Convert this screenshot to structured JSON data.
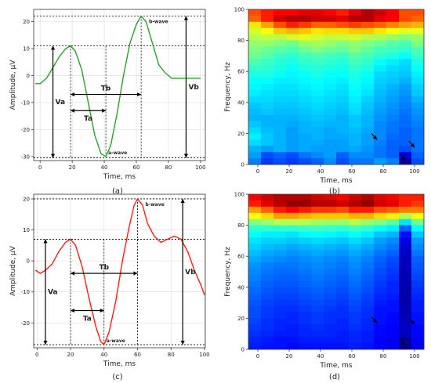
{
  "captions": {
    "a": "(a)",
    "b": "(b)",
    "c": "(c)",
    "d": "(d)"
  },
  "colors": {
    "green_curve": "#2ca02c",
    "red_curve": "#ff1a1a"
  },
  "chart_data": [
    {
      "id": "a",
      "type": "line",
      "xlabel": "Time, ms",
      "ylabel": "Amplitude, μV",
      "xlim": [
        -4,
        103
      ],
      "ylim": [
        -31.5,
        24.5
      ],
      "xticks": [
        0,
        20,
        40,
        60,
        80,
        100
      ],
      "yticks": [
        -30,
        -20,
        -10,
        0,
        10,
        20
      ],
      "grid": true,
      "series": [
        {
          "color": "#2ca02c",
          "x": [
            -3,
            0,
            4,
            8,
            12,
            16,
            19,
            22,
            26,
            30,
            34,
            38,
            41,
            44,
            48,
            52,
            56,
            60,
            63,
            66,
            70,
            74,
            78,
            82,
            86,
            90,
            94,
            98,
            100
          ],
          "y": [
            -3,
            -3,
            -1,
            3,
            7,
            10,
            11,
            9,
            2,
            -10,
            -22,
            -29,
            -30,
            -26,
            -14,
            0,
            12,
            19,
            22,
            20,
            12,
            4,
            1,
            -1,
            -1,
            -1,
            -1,
            -1,
            -1
          ]
        }
      ],
      "annotations": {
        "a_wave": "a-wave",
        "b_wave": "b-wave",
        "Va": "Va",
        "Vb": "Vb",
        "Ta": "Ta",
        "Tb": "Tb"
      },
      "markers": {
        "a_peak": [
          41,
          -30
        ],
        "b_peak": [
          63,
          22
        ],
        "onset": 19,
        "onset_level": 11,
        "baseline": -30.5,
        "va_x": 8,
        "vb_x": 91,
        "ta_y": -13,
        "tb_y": -7
      }
    },
    {
      "id": "b",
      "type": "heatmap",
      "xlabel": "Time, ms",
      "ylabel": "Frequency, Hz",
      "xlim": [
        -6,
        106
      ],
      "ylim": [
        0,
        100
      ],
      "xticks": [
        0,
        20,
        40,
        60,
        80,
        100
      ],
      "yticks": [
        0,
        20,
        40,
        60,
        80,
        100
      ],
      "columns": 14,
      "row_height_hz": 4,
      "levels": [
        [
          0.8,
          0.85,
          0.88,
          0.88,
          0.9,
          0.9,
          0.88,
          0.85,
          0.9,
          0.95,
          0.92,
          0.88,
          0.8,
          0.8
        ],
        [
          0.78,
          0.85,
          0.92,
          0.95,
          0.95,
          0.92,
          0.92,
          0.9,
          0.95,
          0.95,
          0.9,
          0.88,
          0.8,
          0.78
        ],
        [
          0.65,
          0.72,
          0.8,
          0.85,
          0.82,
          0.78,
          0.78,
          0.8,
          0.82,
          0.8,
          0.78,
          0.75,
          0.72,
          0.7
        ],
        [
          0.58,
          0.62,
          0.68,
          0.7,
          0.68,
          0.65,
          0.66,
          0.66,
          0.68,
          0.68,
          0.65,
          0.62,
          0.6,
          0.6
        ],
        [
          0.55,
          0.56,
          0.55,
          0.58,
          0.6,
          0.58,
          0.56,
          0.57,
          0.58,
          0.55,
          0.54,
          0.52,
          0.5,
          0.52
        ],
        [
          0.52,
          0.52,
          0.5,
          0.48,
          0.52,
          0.54,
          0.52,
          0.5,
          0.52,
          0.5,
          0.48,
          0.46,
          0.45,
          0.5
        ],
        [
          0.5,
          0.48,
          0.46,
          0.45,
          0.48,
          0.5,
          0.48,
          0.47,
          0.5,
          0.47,
          0.44,
          0.44,
          0.42,
          0.45
        ],
        [
          0.48,
          0.46,
          0.43,
          0.42,
          0.44,
          0.45,
          0.44,
          0.43,
          0.46,
          0.44,
          0.42,
          0.4,
          0.38,
          0.43
        ],
        [
          0.45,
          0.43,
          0.41,
          0.4,
          0.42,
          0.43,
          0.42,
          0.41,
          0.44,
          0.42,
          0.38,
          0.36,
          0.34,
          0.4
        ],
        [
          0.42,
          0.42,
          0.4,
          0.38,
          0.4,
          0.41,
          0.4,
          0.39,
          0.42,
          0.4,
          0.36,
          0.34,
          0.33,
          0.38
        ],
        [
          0.4,
          0.4,
          0.38,
          0.37,
          0.38,
          0.4,
          0.38,
          0.38,
          0.4,
          0.38,
          0.34,
          0.33,
          0.32,
          0.36
        ],
        [
          0.38,
          0.38,
          0.36,
          0.36,
          0.37,
          0.38,
          0.37,
          0.36,
          0.39,
          0.37,
          0.33,
          0.32,
          0.3,
          0.35
        ],
        [
          0.37,
          0.36,
          0.35,
          0.35,
          0.36,
          0.37,
          0.36,
          0.35,
          0.38,
          0.36,
          0.32,
          0.3,
          0.28,
          0.33
        ],
        [
          0.36,
          0.35,
          0.34,
          0.34,
          0.35,
          0.36,
          0.35,
          0.34,
          0.37,
          0.35,
          0.31,
          0.29,
          0.27,
          0.32
        ],
        [
          0.34,
          0.34,
          0.33,
          0.33,
          0.34,
          0.35,
          0.34,
          0.33,
          0.36,
          0.33,
          0.3,
          0.28,
          0.26,
          0.3
        ],
        [
          0.32,
          0.33,
          0.32,
          0.32,
          0.33,
          0.34,
          0.33,
          0.32,
          0.35,
          0.32,
          0.29,
          0.27,
          0.25,
          0.28
        ],
        [
          0.31,
          0.32,
          0.31,
          0.31,
          0.32,
          0.33,
          0.32,
          0.31,
          0.34,
          0.31,
          0.28,
          0.26,
          0.24,
          0.27
        ],
        [
          0.3,
          0.3,
          0.3,
          0.3,
          0.31,
          0.32,
          0.31,
          0.3,
          0.32,
          0.3,
          0.27,
          0.25,
          0.23,
          0.26
        ],
        [
          0.32,
          0.3,
          0.3,
          0.29,
          0.3,
          0.31,
          0.3,
          0.3,
          0.32,
          0.3,
          0.26,
          0.24,
          0.23,
          0.25
        ],
        [
          0.34,
          0.31,
          0.3,
          0.28,
          0.3,
          0.3,
          0.29,
          0.3,
          0.31,
          0.29,
          0.26,
          0.24,
          0.22,
          0.24
        ],
        [
          0.36,
          0.32,
          0.3,
          0.28,
          0.29,
          0.3,
          0.29,
          0.29,
          0.3,
          0.28,
          0.26,
          0.23,
          0.22,
          0.24
        ],
        [
          0.34,
          0.32,
          0.3,
          0.28,
          0.29,
          0.29,
          0.28,
          0.28,
          0.3,
          0.28,
          0.25,
          0.22,
          0.22,
          0.24
        ],
        [
          0.3,
          0.28,
          0.3,
          0.28,
          0.29,
          0.28,
          0.28,
          0.28,
          0.29,
          0.27,
          0.24,
          0.22,
          0.2,
          0.24
        ],
        [
          0.28,
          0.2,
          0.22,
          0.2,
          0.24,
          0.26,
          0.28,
          0.22,
          0.26,
          0.26,
          0.24,
          0.22,
          0.1,
          0.22
        ],
        [
          0.25,
          0.18,
          0.2,
          0.18,
          0.2,
          0.22,
          0.26,
          0.2,
          0.24,
          0.24,
          0.28,
          0.25,
          0.03,
          0.2
        ]
      ],
      "arrows": [
        {
          "x": 76,
          "y": 16
        },
        {
          "x": 100,
          "y": 11
        },
        {
          "x": 94,
          "y": 3
        }
      ]
    },
    {
      "id": "c",
      "type": "line",
      "xlabel": "Time, ms",
      "ylabel": "Amplitude, μV",
      "xlim": [
        -2,
        100.5
      ],
      "ylim": [
        -28,
        21.5
      ],
      "xticks": [
        0,
        20,
        40,
        60,
        80,
        100
      ],
      "yticks": [
        -20,
        -10,
        0,
        10,
        20
      ],
      "grid": true,
      "series": [
        {
          "color": "#ff1a1a",
          "x": [
            -1,
            2,
            5,
            9,
            13,
            17,
            20,
            23,
            27,
            31,
            35,
            38,
            40,
            43,
            47,
            51,
            55,
            58,
            60,
            63,
            66,
            70,
            74,
            78,
            82,
            86,
            90,
            94,
            98,
            100
          ],
          "y": [
            -3,
            -4,
            -3,
            -1,
            3,
            6,
            7,
            5,
            -2,
            -12,
            -21,
            -26,
            -27,
            -23,
            -13,
            0,
            11,
            18,
            20,
            18,
            12,
            8,
            6,
            7,
            8,
            7,
            3,
            -3,
            -8,
            -11
          ]
        }
      ],
      "annotations": {
        "a_wave": "a-wave",
        "b_wave": "b-wave",
        "Va": "Va",
        "Vb": "Vb",
        "Ta": "Ta",
        "Tb": "Tb"
      },
      "markers": {
        "a_peak": [
          40,
          -27
        ],
        "b_peak": [
          60,
          20
        ],
        "onset": 20,
        "onset_level": 7,
        "baseline": -27,
        "va_x": 5,
        "vb_x": 87,
        "ta_y": -16,
        "tb_y": -4
      }
    },
    {
      "id": "d",
      "type": "heatmap",
      "xlabel": "Time, ms",
      "ylabel": "Frequency, Hz",
      "xlim": [
        -6,
        106
      ],
      "ylim": [
        0,
        100
      ],
      "xticks": [
        0,
        20,
        40,
        60,
        80,
        100
      ],
      "yticks": [
        0,
        20,
        40,
        60,
        80,
        100
      ],
      "columns": 14,
      "row_height_hz": 4,
      "levels": [
        [
          0.88,
          0.92,
          0.95,
          0.95,
          0.95,
          0.92,
          0.9,
          0.88,
          0.92,
          0.95,
          0.9,
          0.88,
          0.85,
          0.85
        ],
        [
          0.85,
          0.9,
          0.95,
          0.98,
          0.98,
          0.95,
          0.95,
          0.92,
          0.95,
          0.98,
          0.92,
          0.9,
          0.85,
          0.82
        ],
        [
          0.72,
          0.78,
          0.85,
          0.88,
          0.85,
          0.82,
          0.82,
          0.8,
          0.85,
          0.85,
          0.8,
          0.78,
          0.75,
          0.75
        ],
        [
          0.62,
          0.66,
          0.72,
          0.72,
          0.7,
          0.68,
          0.68,
          0.68,
          0.7,
          0.7,
          0.66,
          0.64,
          0.55,
          0.62
        ],
        [
          0.5,
          0.52,
          0.55,
          0.55,
          0.55,
          0.53,
          0.52,
          0.52,
          0.55,
          0.52,
          0.5,
          0.46,
          0.35,
          0.48
        ],
        [
          0.42,
          0.42,
          0.42,
          0.42,
          0.43,
          0.44,
          0.43,
          0.42,
          0.44,
          0.42,
          0.38,
          0.36,
          0.22,
          0.38
        ],
        [
          0.38,
          0.36,
          0.36,
          0.35,
          0.37,
          0.38,
          0.37,
          0.36,
          0.38,
          0.36,
          0.32,
          0.3,
          0.14,
          0.32
        ],
        [
          0.35,
          0.33,
          0.33,
          0.32,
          0.33,
          0.34,
          0.33,
          0.32,
          0.34,
          0.32,
          0.28,
          0.26,
          0.1,
          0.28
        ],
        [
          0.33,
          0.31,
          0.3,
          0.29,
          0.3,
          0.31,
          0.3,
          0.29,
          0.31,
          0.29,
          0.26,
          0.24,
          0.08,
          0.26
        ],
        [
          0.31,
          0.29,
          0.28,
          0.27,
          0.28,
          0.29,
          0.28,
          0.27,
          0.29,
          0.27,
          0.24,
          0.22,
          0.07,
          0.24
        ],
        [
          0.29,
          0.27,
          0.26,
          0.25,
          0.26,
          0.27,
          0.26,
          0.25,
          0.27,
          0.25,
          0.22,
          0.2,
          0.06,
          0.22
        ],
        [
          0.27,
          0.25,
          0.24,
          0.24,
          0.25,
          0.26,
          0.25,
          0.24,
          0.26,
          0.24,
          0.21,
          0.19,
          0.06,
          0.21
        ],
        [
          0.26,
          0.24,
          0.23,
          0.23,
          0.24,
          0.25,
          0.24,
          0.23,
          0.25,
          0.23,
          0.2,
          0.18,
          0.05,
          0.2
        ],
        [
          0.25,
          0.23,
          0.22,
          0.22,
          0.23,
          0.24,
          0.23,
          0.22,
          0.24,
          0.22,
          0.19,
          0.17,
          0.05,
          0.19
        ],
        [
          0.24,
          0.22,
          0.21,
          0.21,
          0.22,
          0.23,
          0.22,
          0.21,
          0.23,
          0.21,
          0.18,
          0.16,
          0.05,
          0.18
        ],
        [
          0.23,
          0.21,
          0.2,
          0.2,
          0.21,
          0.22,
          0.21,
          0.2,
          0.22,
          0.2,
          0.17,
          0.16,
          0.04,
          0.17
        ],
        [
          0.22,
          0.2,
          0.19,
          0.19,
          0.2,
          0.21,
          0.2,
          0.19,
          0.21,
          0.19,
          0.16,
          0.15,
          0.04,
          0.16
        ],
        [
          0.21,
          0.19,
          0.18,
          0.18,
          0.19,
          0.2,
          0.19,
          0.18,
          0.2,
          0.18,
          0.15,
          0.14,
          0.04,
          0.15
        ],
        [
          0.2,
          0.18,
          0.17,
          0.17,
          0.18,
          0.19,
          0.18,
          0.17,
          0.19,
          0.17,
          0.14,
          0.14,
          0.05,
          0.15
        ],
        [
          0.2,
          0.18,
          0.17,
          0.16,
          0.17,
          0.18,
          0.17,
          0.17,
          0.18,
          0.17,
          0.14,
          0.13,
          0.05,
          0.14
        ],
        [
          0.19,
          0.17,
          0.16,
          0.16,
          0.17,
          0.18,
          0.17,
          0.16,
          0.18,
          0.16,
          0.14,
          0.13,
          0.06,
          0.14
        ],
        [
          0.18,
          0.17,
          0.16,
          0.15,
          0.16,
          0.17,
          0.16,
          0.16,
          0.17,
          0.16,
          0.13,
          0.12,
          0.06,
          0.13
        ],
        [
          0.17,
          0.16,
          0.15,
          0.15,
          0.16,
          0.16,
          0.16,
          0.15,
          0.16,
          0.15,
          0.13,
          0.12,
          0.06,
          0.13
        ],
        [
          0.16,
          0.15,
          0.14,
          0.14,
          0.15,
          0.15,
          0.15,
          0.15,
          0.16,
          0.15,
          0.12,
          0.11,
          0.03,
          0.12
        ],
        [
          0.15,
          0.14,
          0.14,
          0.13,
          0.14,
          0.14,
          0.14,
          0.14,
          0.15,
          0.14,
          0.12,
          0.11,
          0.02,
          0.11
        ]
      ],
      "arrows": [
        {
          "x": 76,
          "y": 17
        },
        {
          "x": 100,
          "y": 16
        },
        {
          "x": 94,
          "y": 3
        }
      ]
    }
  ]
}
